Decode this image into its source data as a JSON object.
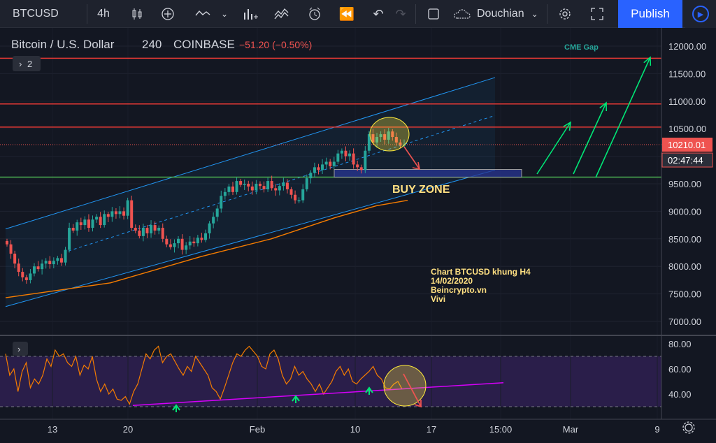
{
  "toolbar": {
    "symbol": "BTCUSD",
    "interval": "4h",
    "layout_name": "Douchian",
    "publish_label": "Publish"
  },
  "header": {
    "title": "Bitcoin / U.S. Dollar",
    "interval": "240",
    "exchange": "COINBASE",
    "change": "−51.20 (−0.50%)",
    "collapse_count": "2"
  },
  "colors": {
    "background": "#131722",
    "up": "#26a69a",
    "down": "#ef5350",
    "resistance": "#e53935",
    "support": "#4caf50",
    "channel": "#2196f3",
    "ma": "#f57c00",
    "rsi": "#f57c00",
    "rsi_band": "#2a1e4a",
    "trend": "#d500f9",
    "annotation_text": "#ffe082",
    "cme_gap": "#26a69a"
  },
  "price_axis": {
    "ticks": [
      "12000.00",
      "11500.00",
      "11000.00",
      "10500.00",
      "10000.00",
      "9500.00",
      "9000.00",
      "8500.00",
      "8000.00",
      "7500.00",
      "7000.00"
    ],
    "current_price": "10210.01",
    "countdown": "02:47:44"
  },
  "rsi_axis": {
    "ticks": [
      "80.00",
      "60.00",
      "40.00"
    ]
  },
  "time_axis": {
    "ticks": [
      "13",
      "20",
      "Feb",
      "10",
      "17",
      "15:00",
      "Mar",
      "9"
    ]
  },
  "annotations": {
    "cme_gap": "CME Gap",
    "buy_zone": "BUY ZONE",
    "note_lines": [
      "Chart BTCUSD khung H4",
      "14/02/2020",
      "Beincrypto.vn",
      "Vivi"
    ]
  },
  "chart_data": {
    "type": "candlestick",
    "symbol": "BTCUSD",
    "interval": "4h",
    "ylim": [
      6700,
      12200
    ],
    "horizontal_levels": [
      {
        "price": 11780,
        "color": "#e53935"
      },
      {
        "price": 10950,
        "color": "#e53935"
      },
      {
        "price": 10530,
        "color": "#e53935"
      },
      {
        "price": 9620,
        "color": "#4caf50"
      }
    ],
    "buy_zone": {
      "low": 9620,
      "high": 9760
    },
    "channel": {
      "upper": [
        [
          0,
          8680
        ],
        [
          700,
          11430
        ]
      ],
      "lower": [
        [
          0,
          7270
        ],
        [
          700,
          9750
        ]
      ],
      "mid": [
        [
          90,
          8280
        ],
        [
          700,
          10740
        ]
      ]
    },
    "closes": [
      8400,
      8230,
      8050,
      7900,
      7800,
      7750,
      7870,
      8000,
      7950,
      8050,
      8100,
      8040,
      8100,
      8150,
      8070,
      8300,
      8700,
      8650,
      8800,
      8750,
      8850,
      8700,
      8850,
      8900,
      8750,
      8950,
      8900,
      9000,
      8950,
      9000,
      8920,
      9200,
      8700,
      8650,
      8550,
      8700,
      8600,
      8750,
      8650,
      8700,
      8500,
      8400,
      8350,
      8420,
      8500,
      8300,
      8380,
      8450,
      8420,
      8520,
      8480,
      8600,
      8780,
      8900,
      9050,
      9280,
      9350,
      9450,
      9350,
      9550,
      9480,
      9500,
      9450,
      9380,
      9500,
      9460,
      9400,
      9550,
      9420,
      9380,
      9460,
      9520,
      9400,
      9300,
      9200,
      9200,
      9400,
      9600,
      9700,
      9800,
      9750,
      9850,
      9900,
      9820,
      9900,
      10050,
      10100,
      10000,
      10050,
      9850,
      9800,
      9750,
      10100,
      10400,
      10250,
      10350,
      10400,
      10300,
      10450,
      10350,
      10250,
      10200,
      10210
    ],
    "ma_points": [
      [
        0,
        7430
      ],
      [
        150,
        7700
      ],
      [
        280,
        8180
      ],
      [
        380,
        8500
      ],
      [
        470,
        8880
      ],
      [
        530,
        9100
      ],
      [
        575,
        9200
      ]
    ],
    "rsi": {
      "ylim": [
        20,
        85
      ],
      "band": [
        30,
        70
      ],
      "values": [
        72,
        55,
        60,
        42,
        58,
        65,
        45,
        52,
        48,
        55,
        68,
        62,
        75,
        70,
        72,
        65,
        62,
        70,
        55,
        63,
        60,
        70,
        52,
        42,
        48,
        40,
        44,
        36,
        35,
        38,
        32,
        42,
        48,
        60,
        72,
        68,
        75,
        78,
        65,
        70,
        72,
        66,
        60,
        55,
        62,
        58,
        70,
        65,
        60,
        55,
        45,
        42,
        36,
        45,
        55,
        65,
        72,
        70,
        75,
        78,
        74,
        70,
        62,
        60,
        72,
        75,
        68,
        55,
        48,
        52,
        62,
        55,
        58,
        52,
        48,
        42,
        48,
        40,
        45,
        50,
        58,
        62,
        55,
        60,
        50,
        48,
        52,
        55,
        58,
        62,
        55,
        52,
        45,
        44,
        48,
        50,
        44
      ]
    },
    "rsi_trend": [
      [
        190,
        31
      ],
      [
        720,
        49
      ]
    ],
    "rsi_arrows_x": [
      252,
      423,
      528
    ]
  }
}
